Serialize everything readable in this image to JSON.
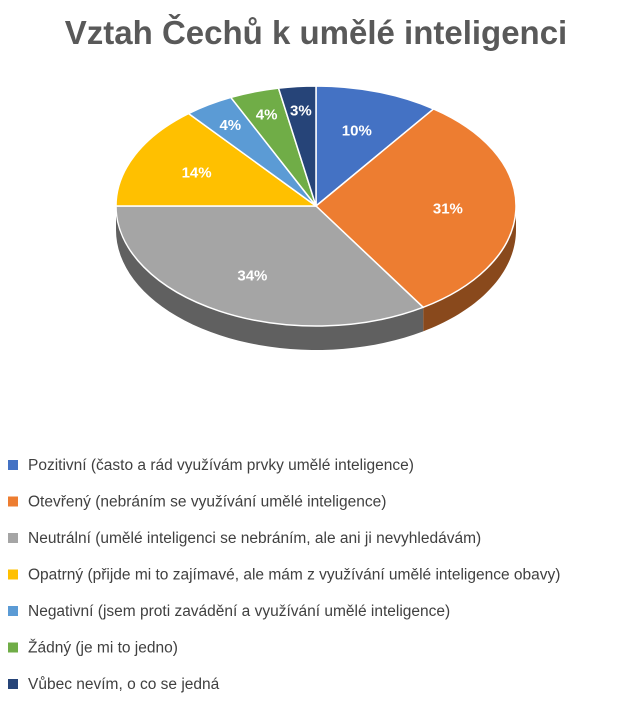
{
  "chart_data": {
    "type": "pie",
    "title": "Vztah Čechů k umělé inteligenci",
    "data_label_format": "percent",
    "slices": [
      {
        "label": "Pozitivní (často a rád využívám prvky umělé inteligence)",
        "value": 10,
        "display": "10%",
        "color": "#4472C4"
      },
      {
        "label": "Otevřený (nebráním se využívání umělé inteligence)",
        "value": 31,
        "display": "31%",
        "color": "#ED7D31"
      },
      {
        "label": "Neutrální (umělé inteligenci se nebráním, ale ani ji nevyhledávám)",
        "value": 34,
        "display": "34%",
        "color": "#A5A5A5"
      },
      {
        "label": "Opatrný (přijde mi to zajímavé, ale mám z využívání umělé inteligence obavy)",
        "value": 14,
        "display": "14%",
        "color": "#FFC000"
      },
      {
        "label": "Negativní (jsem proti zavádění a využívání umělé inteligence)",
        "value": 4,
        "display": "4%",
        "color": "#5B9BD5"
      },
      {
        "label": "Žádný (je mi to jedno)",
        "value": 4,
        "display": "4%",
        "color": "#70AD47"
      },
      {
        "label": "Vůbec nevím, o co se jedná",
        "value": 3,
        "display": "3%",
        "color": "#264478"
      }
    ],
    "legend_position": "bottom",
    "style": "3d-pie"
  }
}
